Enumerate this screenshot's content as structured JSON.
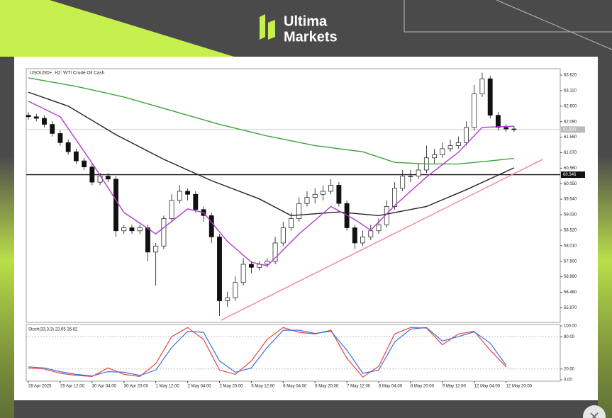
{
  "brand": {
    "line1": "Ultima",
    "line2": "Markets"
  },
  "chart_data": {
    "type": "candlestick",
    "title": "USOUSD+, H2: WTI Crude Oil Cash",
    "xlim": [
      -0.27,
      66.8
    ],
    "xticks": [
      {
        "value": 0,
        "label": "28 Apr 2025"
      },
      {
        "value": 4,
        "label": "29 Apr 12:00"
      },
      {
        "value": 8,
        "label": "30 Apr 04:00"
      },
      {
        "value": 12,
        "label": "30 Apr 20:00"
      },
      {
        "value": 16,
        "label": "1 May 12:00"
      },
      {
        "value": 20,
        "label": "2 May 04:00"
      },
      {
        "value": 24,
        "label": "2 May 20:00"
      },
      {
        "value": 28,
        "label": "5 May 12:00"
      },
      {
        "value": 32,
        "label": "6 May 04:00"
      },
      {
        "value": 36,
        "label": "6 May 20:00"
      },
      {
        "value": 40,
        "label": "7 May 12:00"
      },
      {
        "value": 44,
        "label": "8 May 04:00"
      },
      {
        "value": 48,
        "label": "8 May 20:00"
      },
      {
        "value": 52,
        "label": "9 May 12:00"
      },
      {
        "value": 56,
        "label": "12 May 04:00"
      },
      {
        "value": 60,
        "label": "12 May 20:00"
      }
    ],
    "ylim": [
      55.49,
      63.83
    ],
    "yticks": [
      {
        "value": 63.62,
        "label": "63.620"
      },
      {
        "value": 63.11,
        "label": "63.110"
      },
      {
        "value": 62.6,
        "label": "62.600"
      },
      {
        "value": 62.09,
        "label": "62.090"
      },
      {
        "value": 61.58,
        "label": "61.580"
      },
      {
        "value": 61.07,
        "label": "61.070"
      },
      {
        "value": 60.56,
        "label": "60.560"
      },
      {
        "value": 60.05,
        "label": "60.050"
      },
      {
        "value": 59.54,
        "label": "59.540"
      },
      {
        "value": 59.03,
        "label": "59.030"
      },
      {
        "value": 58.52,
        "label": "58.520"
      },
      {
        "value": 58.01,
        "label": "58.010"
      },
      {
        "value": 57.5,
        "label": "57.500"
      },
      {
        "value": 56.99,
        "label": "56.990"
      },
      {
        "value": 56.48,
        "label": "56.480"
      },
      {
        "value": 55.97,
        "label": "55.970"
      }
    ],
    "candles": [
      [
        62.3,
        62.4,
        62.15,
        62.25
      ],
      [
        62.25,
        62.35,
        62.1,
        62.2
      ],
      [
        62.2,
        62.3,
        61.9,
        62.0
      ],
      [
        62.0,
        62.1,
        61.6,
        61.7
      ],
      [
        61.7,
        61.8,
        61.3,
        61.4
      ],
      [
        61.4,
        61.5,
        61.0,
        61.1
      ],
      [
        61.1,
        61.2,
        60.7,
        60.8
      ],
      [
        60.8,
        60.9,
        60.5,
        60.6
      ],
      [
        60.6,
        60.7,
        60.0,
        60.1
      ],
      [
        60.1,
        60.4,
        60.0,
        60.3
      ],
      [
        60.3,
        60.4,
        60.1,
        60.2
      ],
      [
        60.2,
        60.3,
        58.3,
        58.5
      ],
      [
        58.5,
        58.7,
        58.4,
        58.6
      ],
      [
        58.6,
        58.7,
        58.4,
        58.5
      ],
      [
        58.5,
        58.7,
        58.4,
        58.6
      ],
      [
        58.6,
        58.7,
        57.5,
        57.8
      ],
      [
        57.8,
        58.1,
        56.7,
        58.0
      ],
      [
        58.0,
        59.0,
        57.9,
        58.9
      ],
      [
        58.9,
        59.7,
        58.8,
        59.5
      ],
      [
        59.5,
        60.0,
        59.4,
        59.8
      ],
      [
        59.8,
        59.9,
        59.5,
        59.7
      ],
      [
        59.7,
        59.8,
        59.1,
        59.2
      ],
      [
        59.2,
        59.3,
        58.8,
        59.0
      ],
      [
        59.0,
        59.1,
        58.1,
        58.3
      ],
      [
        58.3,
        58.4,
        55.7,
        56.2
      ],
      [
        56.2,
        56.5,
        56.0,
        56.3
      ],
      [
        56.3,
        57.0,
        56.2,
        56.8
      ],
      [
        56.8,
        57.6,
        56.7,
        57.4
      ],
      [
        57.4,
        57.5,
        57.1,
        57.3
      ],
      [
        57.3,
        57.5,
        57.2,
        57.4
      ],
      [
        57.4,
        57.6,
        57.3,
        57.5
      ],
      [
        57.5,
        58.3,
        57.4,
        58.1
      ],
      [
        58.1,
        58.8,
        58.0,
        58.6
      ],
      [
        58.6,
        59.1,
        58.5,
        58.9
      ],
      [
        58.9,
        59.6,
        58.8,
        59.4
      ],
      [
        59.4,
        59.8,
        59.3,
        59.6
      ],
      [
        59.6,
        59.9,
        59.4,
        59.7
      ],
      [
        59.7,
        60.0,
        59.5,
        59.8
      ],
      [
        59.8,
        60.2,
        59.7,
        60.0
      ],
      [
        60.0,
        60.1,
        59.3,
        59.4
      ],
      [
        59.4,
        59.5,
        58.5,
        58.6
      ],
      [
        58.6,
        58.7,
        57.9,
        58.1
      ],
      [
        58.1,
        58.5,
        58.0,
        58.3
      ],
      [
        58.3,
        58.7,
        58.2,
        58.5
      ],
      [
        58.5,
        58.9,
        58.4,
        58.7
      ],
      [
        58.7,
        59.5,
        58.6,
        59.3
      ],
      [
        59.3,
        60.1,
        59.2,
        59.9
      ],
      [
        59.9,
        60.5,
        59.8,
        60.3
      ],
      [
        60.3,
        60.5,
        60.1,
        60.3
      ],
      [
        60.3,
        60.7,
        60.2,
        60.5
      ],
      [
        60.5,
        61.3,
        60.4,
        60.9
      ],
      [
        60.9,
        61.2,
        60.7,
        61.0
      ],
      [
        61.0,
        61.4,
        60.9,
        61.2
      ],
      [
        61.2,
        61.5,
        61.1,
        61.3
      ],
      [
        61.3,
        61.6,
        61.2,
        61.4
      ],
      [
        61.4,
        62.1,
        61.3,
        61.9
      ],
      [
        61.9,
        63.3,
        61.8,
        63.0
      ],
      [
        63.0,
        63.7,
        62.9,
        63.5
      ],
      [
        63.5,
        63.6,
        62.2,
        62.3
      ],
      [
        62.3,
        62.4,
        61.8,
        61.9
      ],
      [
        61.9,
        62.0,
        61.75,
        61.85
      ],
      [
        61.85,
        61.95,
        61.75,
        61.83
      ]
    ],
    "overlays": [
      {
        "color": "#3ea33e",
        "x": [
          0,
          6,
          12,
          18,
          24,
          30,
          36,
          42,
          46,
          50,
          54,
          58,
          61
        ],
        "values": [
          63.53,
          63.25,
          62.9,
          62.45,
          62.0,
          61.62,
          61.3,
          61.1,
          60.75,
          60.7,
          60.7,
          60.8,
          60.88
        ]
      },
      {
        "color": "#222222",
        "x": [
          0,
          5,
          11,
          17,
          23,
          29,
          33,
          39,
          44,
          50,
          55,
          61
        ],
        "values": [
          63.06,
          62.6,
          61.66,
          60.85,
          60.15,
          59.55,
          59.0,
          59.12,
          59.0,
          59.3,
          59.85,
          60.57
        ]
      },
      {
        "color": "#b03ccf",
        "x": [
          0,
          4,
          8,
          12,
          16,
          20,
          22,
          25,
          28,
          30,
          34,
          38,
          41,
          43,
          46,
          50,
          54,
          57,
          61
        ],
        "values": [
          62.76,
          62.25,
          60.73,
          59.1,
          58.4,
          59.22,
          59.1,
          58.15,
          57.47,
          57.35,
          58.4,
          59.3,
          58.87,
          58.52,
          59.33,
          60.27,
          61.08,
          61.9,
          61.94
        ]
      },
      {
        "color": "#f08a8a",
        "x": [
          24.2,
          64.6
        ],
        "values": [
          55.56,
          60.85
        ]
      }
    ],
    "hline": {
      "value": 60.346,
      "label": "60.346"
    },
    "last": {
      "value": 61.83,
      "label": "61.830"
    },
    "indicator": {
      "title": "Stoch(33,3,3) 23.65 26.82",
      "ylim": [
        0,
        100
      ],
      "yticks": [
        {
          "value": 100,
          "label": "100.00"
        },
        {
          "value": 80,
          "label": "80.00"
        },
        {
          "value": 20,
          "label": "20.00"
        },
        {
          "value": 0,
          "label": "0.00"
        }
      ],
      "x": [
        0,
        2,
        4,
        6,
        8,
        10,
        12,
        14,
        16,
        18,
        20,
        22,
        24,
        26,
        28,
        30,
        32,
        34,
        36,
        38,
        40,
        42,
        44,
        46,
        48,
        50,
        52,
        54,
        56,
        58,
        60
      ],
      "series": [
        {
          "color": "#e8453c",
          "values": [
            22,
            20,
            12,
            8,
            6,
            22,
            10,
            6,
            30,
            80,
            97,
            75,
            18,
            10,
            35,
            75,
            97,
            88,
            85,
            92,
            40,
            5,
            25,
            85,
            97,
            96,
            65,
            85,
            90,
            55,
            24
          ]
        },
        {
          "color": "#3b6fe0",
          "values": [
            24,
            22,
            15,
            10,
            7,
            15,
            14,
            8,
            18,
            60,
            90,
            88,
            35,
            14,
            22,
            60,
            92,
            92,
            86,
            90,
            55,
            12,
            18,
            70,
            94,
            97,
            72,
            80,
            89,
            68,
            27
          ]
        }
      ]
    }
  }
}
